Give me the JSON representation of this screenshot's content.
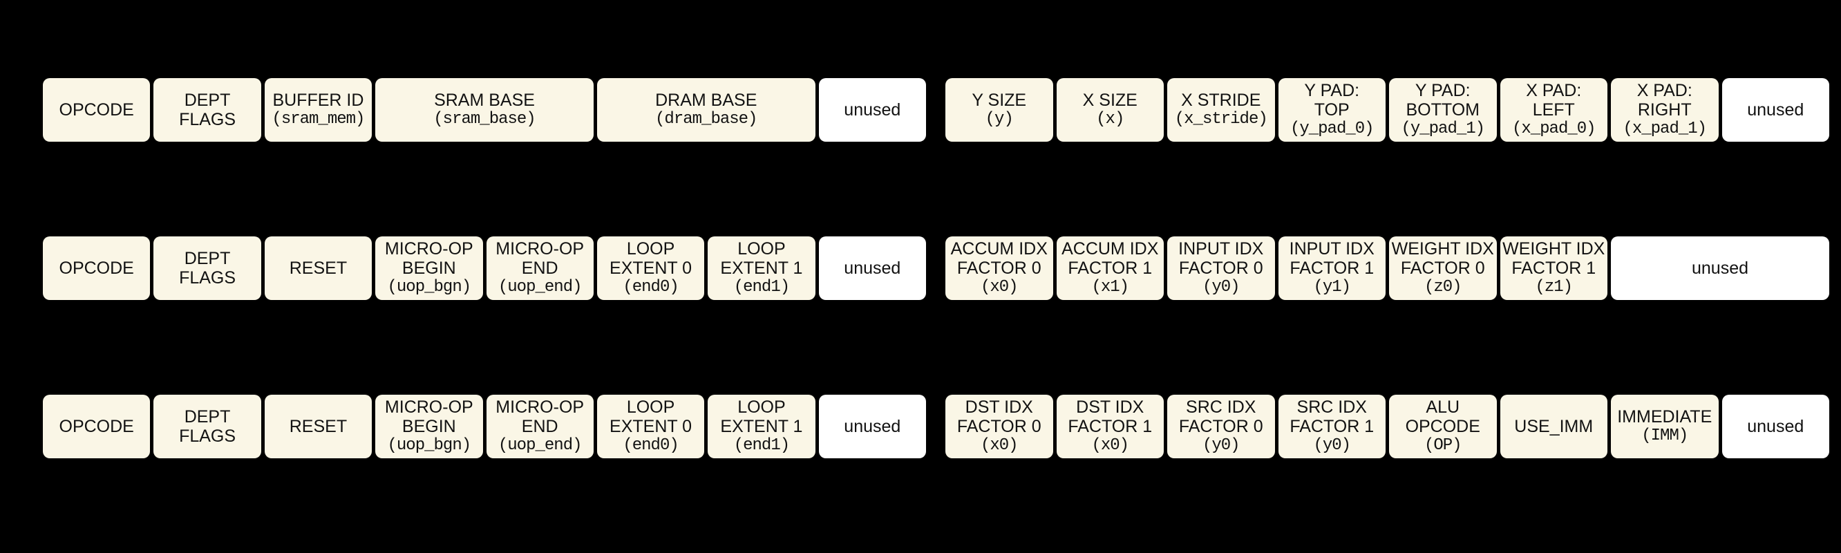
{
  "diagram": {
    "colors": {
      "background": "#000000",
      "field_fill": "#FAF6E6",
      "unused_fill": "#FFFFFF",
      "text": "#121212"
    },
    "rows": [
      {
        "left": [
          {
            "label": "OPCODE",
            "span": 1
          },
          {
            "label": "DEPT\nFLAGS",
            "span": 1
          },
          {
            "label": "BUFFER ID",
            "code": "(sram_mem)",
            "span": 1
          },
          {
            "label": "SRAM BASE",
            "code": "(sram_base)",
            "span": 2
          },
          {
            "label": "DRAM BASE",
            "code": "(dram_base)",
            "span": 2
          },
          {
            "label": "unused",
            "span": 1,
            "unused": true
          }
        ],
        "right": [
          {
            "label": "Y SIZE",
            "code": "(y)",
            "span": 1
          },
          {
            "label": "X SIZE",
            "code": "(x)",
            "span": 1
          },
          {
            "label": "X STRIDE",
            "code": "(x_stride)",
            "span": 1
          },
          {
            "label": "Y PAD:\nTOP",
            "code": "(y_pad_0)",
            "span": 1
          },
          {
            "label": "Y PAD:\nBOTTOM",
            "code": "(y_pad_1)",
            "span": 1
          },
          {
            "label": "X PAD:\nLEFT",
            "code": "(x_pad_0)",
            "span": 1
          },
          {
            "label": "X PAD:\nRIGHT",
            "code": "(x_pad_1)",
            "span": 1
          },
          {
            "label": "unused",
            "span": 1,
            "unused": true
          }
        ]
      },
      {
        "left": [
          {
            "label": "OPCODE",
            "span": 1
          },
          {
            "label": "DEPT\nFLAGS",
            "span": 1
          },
          {
            "label": "RESET",
            "span": 1
          },
          {
            "label": "MICRO-OP\nBEGIN",
            "code": "(uop_bgn)",
            "span": 1
          },
          {
            "label": "MICRO-OP\nEND",
            "code": "(uop_end)",
            "span": 1
          },
          {
            "label": "LOOP\nEXTENT 0",
            "code": "(end0)",
            "span": 1
          },
          {
            "label": "LOOP\nEXTENT 1",
            "code": "(end1)",
            "span": 1
          },
          {
            "label": "unused",
            "span": 1,
            "unused": true
          }
        ],
        "right": [
          {
            "label": "ACCUM IDX\nFACTOR 0",
            "code": "(x0)",
            "span": 1
          },
          {
            "label": "ACCUM IDX\nFACTOR 1",
            "code": "(x1)",
            "span": 1
          },
          {
            "label": "INPUT IDX\nFACTOR 0",
            "code": "(y0)",
            "span": 1
          },
          {
            "label": "INPUT IDX\nFACTOR 1",
            "code": "(y1)",
            "span": 1
          },
          {
            "label": "WEIGHT IDX\nFACTOR 0",
            "code": "(z0)",
            "span": 1
          },
          {
            "label": "WEIGHT IDX\nFACTOR 1",
            "code": "(z1)",
            "span": 1
          },
          {
            "label": "unused",
            "span": 2,
            "unused": true
          }
        ]
      },
      {
        "left": [
          {
            "label": "OPCODE",
            "span": 1
          },
          {
            "label": "DEPT\nFLAGS",
            "span": 1
          },
          {
            "label": "RESET",
            "span": 1
          },
          {
            "label": "MICRO-OP\nBEGIN",
            "code": "(uop_bgn)",
            "span": 1
          },
          {
            "label": "MICRO-OP\nEND",
            "code": "(uop_end)",
            "span": 1
          },
          {
            "label": "LOOP\nEXTENT 0",
            "code": "(end0)",
            "span": 1
          },
          {
            "label": "LOOP\nEXTENT 1",
            "code": "(end1)",
            "span": 1
          },
          {
            "label": "unused",
            "span": 1,
            "unused": true
          }
        ],
        "right": [
          {
            "label": "DST IDX\nFACTOR 0",
            "code": "(x0)",
            "span": 1
          },
          {
            "label": "DST IDX\nFACTOR 1",
            "code": "(x0)",
            "span": 1
          },
          {
            "label": "SRC IDX\nFACTOR 0",
            "code": "(y0)",
            "span": 1
          },
          {
            "label": "SRC IDX\nFACTOR 1",
            "code": "(y0)",
            "span": 1
          },
          {
            "label": "ALU\nOPCODE",
            "code": "(OP)",
            "span": 1
          },
          {
            "label": "USE_IMM",
            "span": 1
          },
          {
            "label": "IMMEDIATE",
            "code": "(IMM)",
            "span": 1
          },
          {
            "label": "unused",
            "span": 1,
            "unused": true
          }
        ]
      }
    ]
  }
}
